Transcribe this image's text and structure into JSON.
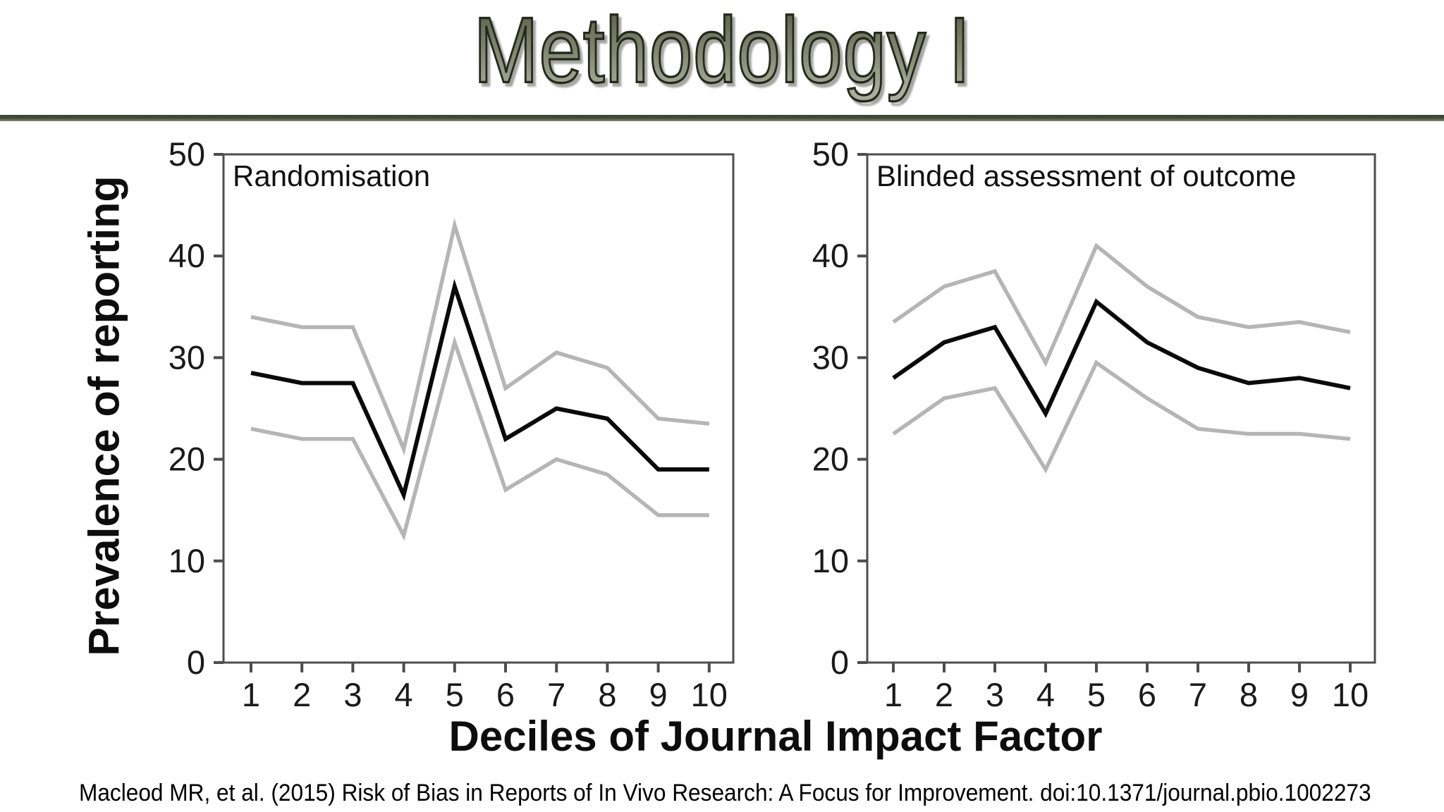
{
  "slide": {
    "title": "Methodology I",
    "citation": "Macleod MR, et al. (2015) Risk of Bias in Reports of In Vivo Research: A Focus for Improvement. doi:10.1371/journal.pbio.1002273"
  },
  "figure": {
    "y_axis_label": "Prevalence of reporting",
    "x_axis_label": "Deciles of Journal Impact Factor"
  },
  "colors": {
    "title_fill_top": "#59624a",
    "title_fill_bottom": "#a9ad9b",
    "title_outline": "#26281e",
    "divider_olive": "#474d3a",
    "line_black": "#0a0a0a",
    "line_gray": "#b5b5b5",
    "axis_gray": "#4d4d4d",
    "tick_text": "#1a1a1a"
  },
  "chart_data": [
    {
      "type": "line",
      "title": "Randomisation",
      "x": [
        1,
        2,
        3,
        4,
        5,
        6,
        7,
        8,
        9,
        10
      ],
      "xlabel": "Deciles of Journal Impact Factor",
      "ylabel": "Prevalence of reporting",
      "ylim": [
        0,
        50
      ],
      "yticks": [
        0,
        10,
        20,
        30,
        40,
        50
      ],
      "grid": false,
      "legend": "none",
      "series": [
        {
          "name": "upper-gray-band",
          "color": "gray",
          "values": [
            34,
            33,
            33,
            21,
            43,
            27,
            30.5,
            29,
            24,
            23.5
          ]
        },
        {
          "name": "center-black-line",
          "color": "black",
          "values": [
            28.5,
            27.5,
            27.5,
            16.5,
            37,
            22,
            25,
            24,
            19,
            19
          ]
        },
        {
          "name": "lower-gray-band",
          "color": "gray",
          "values": [
            23,
            22,
            22,
            12.5,
            31.5,
            17,
            20,
            18.5,
            14.5,
            14.5
          ]
        }
      ]
    },
    {
      "type": "line",
      "title": "Blinded assessment of outcome",
      "x": [
        1,
        2,
        3,
        4,
        5,
        6,
        7,
        8,
        9,
        10
      ],
      "xlabel": "Deciles of Journal Impact Factor",
      "ylabel": "Prevalence of reporting",
      "ylim": [
        0,
        50
      ],
      "yticks": [
        0,
        10,
        20,
        30,
        40,
        50
      ],
      "grid": false,
      "legend": "none",
      "series": [
        {
          "name": "upper-gray-band",
          "color": "gray",
          "values": [
            33.5,
            37,
            38.5,
            29.5,
            41,
            37,
            34,
            33,
            33.5,
            32.5
          ]
        },
        {
          "name": "center-black-line",
          "color": "black",
          "values": [
            28,
            31.5,
            33,
            24.5,
            35.5,
            31.5,
            29,
            27.5,
            28,
            27
          ]
        },
        {
          "name": "lower-gray-band",
          "color": "gray",
          "values": [
            22.5,
            26,
            27,
            19,
            29.5,
            26,
            23,
            22.5,
            22.5,
            22
          ]
        }
      ]
    }
  ]
}
